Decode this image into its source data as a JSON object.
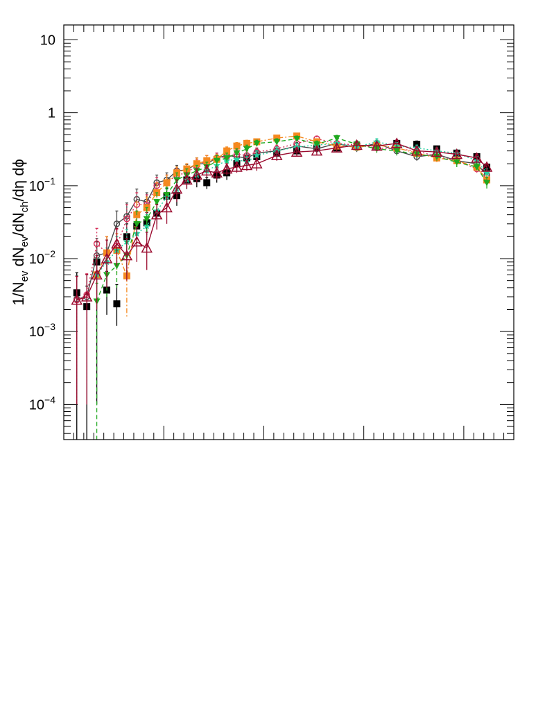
{
  "chart_data": {
    "type": "scatter",
    "title": "",
    "xlabel": "",
    "ylabel": "1/N_ev dN_ev/dN_ch/dη dϕ",
    "ylabel_parts": {
      "a": "1/N",
      "a_sub": "ev",
      "b": " dN",
      "b_sub": "ev",
      "c": "/dN",
      "c_sub": "ch",
      "d": "/dη dϕ"
    },
    "yscale": "log",
    "ylim": [
      3.3e-05,
      16
    ],
    "xlim": [
      0,
      45
    ],
    "grid": false,
    "legend": "none",
    "y_tick_labels": [
      {
        "value": 10,
        "base": "10",
        "exp": ""
      },
      {
        "value": 1,
        "base": "1",
        "exp": ""
      },
      {
        "value": 0.1,
        "base": "10",
        "exp": "−1"
      },
      {
        "value": 0.01,
        "base": "10",
        "exp": "−2"
      },
      {
        "value": 0.001,
        "base": "10",
        "exp": "−3"
      },
      {
        "value": 0.0001,
        "base": "10",
        "exp": "−4"
      }
    ],
    "series": [
      {
        "color": "#000000",
        "marker": "square-filled",
        "dash": "none",
        "connect": false,
        "x": [
          1.3,
          2.3,
          3.3,
          4.3,
          5.3,
          6.3,
          7.3,
          8.3,
          9.3,
          10.3,
          11.3,
          12.3,
          13.3,
          14.3,
          15.3,
          16.3,
          17.3,
          18.3,
          19.3,
          21.3,
          23.3,
          25.3,
          27.3,
          29.3,
          31.3,
          33.3,
          35.3,
          37.3,
          39.3,
          41.3,
          42.3
        ],
        "y": [
          0.0034,
          0.0022,
          0.009,
          0.0037,
          0.0024,
          0.02,
          0.028,
          0.031,
          0.042,
          0.072,
          0.073,
          0.12,
          0.125,
          0.11,
          0.14,
          0.15,
          0.2,
          0.24,
          0.25,
          0.28,
          0.3,
          0.34,
          0.33,
          0.35,
          0.34,
          0.38,
          0.37,
          0.32,
          0.28,
          0.25,
          0.18
        ],
        "err_low": [
          0.0034,
          0.0022,
          0.0089,
          0.002,
          0.0012,
          0.008,
          0.01,
          0.01,
          0.012,
          0.02,
          0.02,
          0.03,
          0.03,
          0.02,
          0.03,
          0.03,
          0.04,
          0.04,
          0.04,
          0.04,
          0.04,
          0.04,
          0.04,
          0.04,
          0.04,
          0.04,
          0.04,
          0.03,
          0.03,
          0.02,
          0.02
        ],
        "err_high": [
          0.003,
          0.002,
          0.008,
          0.003,
          0.002,
          0.01,
          0.012,
          0.012,
          0.014,
          0.02,
          0.02,
          0.03,
          0.03,
          0.02,
          0.03,
          0.03,
          0.04,
          0.04,
          0.04,
          0.04,
          0.04,
          0.04,
          0.04,
          0.04,
          0.04,
          0.04,
          0.04,
          0.03,
          0.03,
          0.02,
          0.02
        ]
      },
      {
        "color": "#4a4a4a",
        "marker": "circle-open",
        "dash": "solid",
        "connect": true,
        "x": [
          1.3,
          2.3,
          3.3,
          4.3,
          5.3,
          6.3,
          7.3,
          8.3,
          9.3,
          10.3,
          11.3,
          12.3,
          13.3,
          14.3,
          15.3,
          16.3,
          17.3,
          18.3,
          19.3,
          21.3,
          23.3,
          25.3,
          27.3,
          29.3,
          31.3,
          33.3,
          35.3,
          37.3,
          39.3,
          41.3,
          42.3
        ],
        "y": [
          0.0028,
          0.003,
          0.011,
          0.012,
          0.03,
          0.038,
          0.065,
          0.06,
          0.11,
          0.12,
          0.16,
          0.165,
          0.2,
          0.2,
          0.24,
          0.26,
          0.25,
          0.24,
          0.28,
          0.3,
          0.35,
          0.32,
          0.38,
          0.33,
          0.38,
          0.3,
          0.25,
          0.27,
          0.22,
          0.2,
          0.14
        ],
        "err_low": [
          0.0027,
          0.0029,
          0.006,
          0.007,
          0.015,
          0.018,
          0.025,
          0.02,
          0.03,
          0.03,
          0.03,
          0.03,
          0.04,
          0.04,
          0.04,
          0.04,
          0.04,
          0.04,
          0.04,
          0.04,
          0.04,
          0.04,
          0.04,
          0.04,
          0.04,
          0.04,
          0.03,
          0.03,
          0.03,
          0.03,
          0.02
        ],
        "err_high": [
          0.003,
          0.003,
          0.008,
          0.008,
          0.015,
          0.02,
          0.025,
          0.02,
          0.03,
          0.03,
          0.03,
          0.03,
          0.04,
          0.04,
          0.04,
          0.04,
          0.04,
          0.04,
          0.04,
          0.04,
          0.04,
          0.04,
          0.04,
          0.04,
          0.04,
          0.04,
          0.03,
          0.03,
          0.03,
          0.03,
          0.02
        ]
      },
      {
        "color": "#d6305a",
        "marker": "circle-open",
        "dash": "dotted",
        "connect": true,
        "x": [
          1.3,
          2.3,
          3.3,
          4.3,
          5.3,
          6.3,
          7.3,
          8.3,
          9.3,
          10.3,
          11.3,
          12.3,
          13.3,
          14.3,
          15.3,
          16.3,
          17.3,
          18.3,
          19.3,
          21.3,
          23.3,
          25.3,
          27.3,
          29.3,
          31.3,
          33.3,
          35.3,
          37.3,
          39.3,
          41.3,
          42.3
        ],
        "y": [
          0.0027,
          0.0032,
          0.016,
          0.012,
          0.015,
          0.035,
          0.055,
          0.055,
          0.1,
          0.11,
          0.14,
          0.15,
          0.19,
          0.22,
          0.24,
          0.25,
          0.27,
          0.26,
          0.29,
          0.32,
          0.38,
          0.44,
          0.38,
          0.36,
          0.33,
          0.32,
          0.3,
          0.25,
          0.22,
          0.17,
          0.13
        ],
        "err_low": [
          0.0026,
          0.003,
          0.008,
          0.006,
          0.008,
          0.015,
          0.02,
          0.02,
          0.03,
          0.03,
          0.03,
          0.03,
          0.04,
          0.04,
          0.04,
          0.04,
          0.04,
          0.04,
          0.04,
          0.04,
          0.04,
          0.04,
          0.04,
          0.04,
          0.04,
          0.04,
          0.03,
          0.03,
          0.03,
          0.02,
          0.02
        ],
        "err_high": [
          0.003,
          0.003,
          0.01,
          0.008,
          0.01,
          0.02,
          0.025,
          0.02,
          0.03,
          0.03,
          0.03,
          0.03,
          0.04,
          0.04,
          0.04,
          0.04,
          0.04,
          0.04,
          0.04,
          0.04,
          0.04,
          0.04,
          0.04,
          0.04,
          0.04,
          0.04,
          0.03,
          0.03,
          0.03,
          0.02,
          0.02
        ]
      },
      {
        "color": "#f5891f",
        "marker": "square-filled",
        "dash": "dashdot",
        "connect": true,
        "x": [
          3.3,
          4.3,
          5.3,
          6.3,
          7.3,
          8.3,
          9.3,
          10.3,
          11.3,
          12.3,
          13.3,
          14.3,
          15.3,
          16.3,
          17.3,
          18.3,
          19.3,
          21.3,
          23.3,
          25.3,
          27.3,
          29.3,
          31.3,
          33.3,
          35.3,
          37.3,
          39.3,
          41.3,
          42.3
        ],
        "y": [
          0.006,
          0.012,
          0.013,
          0.0058,
          0.04,
          0.05,
          0.08,
          0.11,
          0.15,
          0.17,
          0.2,
          0.22,
          0.23,
          0.3,
          0.35,
          0.38,
          0.4,
          0.45,
          0.48,
          0.4,
          0.35,
          0.34,
          0.36,
          0.33,
          0.28,
          0.24,
          0.22,
          0.18,
          0.12
        ],
        "err_low": [
          0.003,
          0.006,
          0.007,
          0.0042,
          0.015,
          0.02,
          0.03,
          0.03,
          0.03,
          0.03,
          0.04,
          0.04,
          0.04,
          0.04,
          0.04,
          0.04,
          0.04,
          0.04,
          0.04,
          0.04,
          0.04,
          0.04,
          0.04,
          0.04,
          0.03,
          0.03,
          0.03,
          0.02,
          0.02
        ],
        "err_high": [
          0.004,
          0.008,
          0.009,
          0.005,
          0.02,
          0.02,
          0.03,
          0.03,
          0.03,
          0.03,
          0.04,
          0.04,
          0.04,
          0.04,
          0.04,
          0.04,
          0.04,
          0.04,
          0.04,
          0.04,
          0.04,
          0.04,
          0.04,
          0.04,
          0.03,
          0.03,
          0.03,
          0.02,
          0.02
        ]
      },
      {
        "color": "#24d0a0",
        "marker": "star",
        "dash": "dotted",
        "connect": true,
        "x": [
          3.3,
          4.3,
          5.3,
          6.3,
          7.3,
          8.3,
          9.3,
          10.3,
          11.3,
          12.3,
          13.3,
          14.3,
          15.3,
          16.3,
          17.3,
          18.3,
          19.3,
          21.3,
          23.3,
          25.3,
          27.3,
          29.3,
          31.3,
          33.3,
          35.3,
          37.3,
          39.3,
          41.3,
          42.3
        ],
        "y": [
          0.006,
          0.009,
          0.013,
          0.017,
          0.022,
          0.028,
          0.045,
          0.07,
          0.09,
          0.12,
          0.14,
          0.16,
          0.19,
          0.22,
          0.23,
          0.21,
          0.26,
          0.3,
          0.34,
          0.36,
          0.38,
          0.34,
          0.4,
          0.35,
          0.33,
          0.3,
          0.28,
          0.22,
          0.15
        ],
        "err_low": [
          0.003,
          0.004,
          0.006,
          0.007,
          0.008,
          0.01,
          0.015,
          0.02,
          0.02,
          0.03,
          0.03,
          0.03,
          0.04,
          0.04,
          0.04,
          0.04,
          0.04,
          0.04,
          0.04,
          0.04,
          0.04,
          0.04,
          0.04,
          0.04,
          0.03,
          0.03,
          0.03,
          0.03,
          0.02
        ],
        "err_high": [
          0.004,
          0.005,
          0.007,
          0.008,
          0.01,
          0.012,
          0.02,
          0.02,
          0.02,
          0.03,
          0.03,
          0.03,
          0.04,
          0.04,
          0.04,
          0.04,
          0.04,
          0.04,
          0.04,
          0.04,
          0.04,
          0.04,
          0.04,
          0.04,
          0.03,
          0.03,
          0.03,
          0.03,
          0.02
        ]
      },
      {
        "color": "#1fa81f",
        "marker": "triangle-down-filled",
        "dash": "dashed",
        "connect": true,
        "x": [
          3.3,
          4.3,
          5.3,
          6.3,
          7.3,
          8.3,
          9.3,
          10.3,
          11.3,
          12.3,
          13.3,
          14.3,
          15.3,
          16.3,
          17.3,
          18.3,
          19.3,
          21.3,
          23.3,
          25.3,
          27.3,
          29.3,
          31.3,
          33.3,
          35.3,
          37.3,
          39.3,
          41.3,
          42.3
        ],
        "y": [
          0.0026,
          0.006,
          0.008,
          0.011,
          0.03,
          0.035,
          0.06,
          0.075,
          0.12,
          0.14,
          0.16,
          0.18,
          0.22,
          0.24,
          0.28,
          0.32,
          0.38,
          0.4,
          0.44,
          0.37,
          0.45,
          0.37,
          0.32,
          0.3,
          0.27,
          0.25,
          0.21,
          0.18,
          0.11
        ],
        "err_low": [
          0.0026,
          0.003,
          0.004,
          0.005,
          0.012,
          0.013,
          0.02,
          0.02,
          0.03,
          0.03,
          0.03,
          0.03,
          0.04,
          0.04,
          0.04,
          0.04,
          0.04,
          0.04,
          0.04,
          0.04,
          0.04,
          0.04,
          0.04,
          0.04,
          0.03,
          0.03,
          0.03,
          0.02,
          0.02
        ],
        "err_high": [
          0.002,
          0.004,
          0.005,
          0.006,
          0.015,
          0.015,
          0.02,
          0.02,
          0.03,
          0.03,
          0.03,
          0.03,
          0.04,
          0.04,
          0.04,
          0.04,
          0.04,
          0.04,
          0.04,
          0.04,
          0.04,
          0.04,
          0.04,
          0.04,
          0.03,
          0.03,
          0.03,
          0.02,
          0.02
        ]
      },
      {
        "color": "#9a0a2e",
        "marker": "triangle-up-open",
        "dash": "solid",
        "connect": true,
        "x": [
          1.3,
          2.3,
          3.3,
          4.3,
          5.3,
          6.3,
          7.3,
          8.3,
          9.3,
          10.3,
          11.3,
          12.3,
          13.3,
          14.3,
          15.3,
          16.3,
          17.3,
          18.3,
          19.3,
          21.3,
          23.3,
          25.3,
          27.3,
          29.3,
          31.3,
          33.3,
          35.3,
          37.3,
          39.3,
          41.3,
          42.3
        ],
        "y": [
          0.0027,
          0.003,
          0.006,
          0.01,
          0.016,
          0.011,
          0.017,
          0.014,
          0.04,
          0.05,
          0.09,
          0.12,
          0.14,
          0.16,
          0.15,
          0.17,
          0.18,
          0.19,
          0.2,
          0.26,
          0.29,
          0.3,
          0.33,
          0.36,
          0.35,
          0.38,
          0.3,
          0.29,
          0.27,
          0.24,
          0.18
        ],
        "err_low": [
          0.0026,
          0.0029,
          0.004,
          0.006,
          0.008,
          0.006,
          0.008,
          0.007,
          0.015,
          0.02,
          0.03,
          0.03,
          0.03,
          0.03,
          0.03,
          0.03,
          0.03,
          0.03,
          0.04,
          0.04,
          0.04,
          0.04,
          0.04,
          0.04,
          0.04,
          0.04,
          0.04,
          0.03,
          0.03,
          0.03,
          0.02
        ],
        "err_high": [
          0.003,
          0.003,
          0.005,
          0.008,
          0.01,
          0.008,
          0.01,
          0.009,
          0.015,
          0.02,
          0.03,
          0.03,
          0.03,
          0.03,
          0.03,
          0.03,
          0.03,
          0.03,
          0.04,
          0.04,
          0.04,
          0.04,
          0.04,
          0.04,
          0.04,
          0.04,
          0.04,
          0.03,
          0.03,
          0.03,
          0.02
        ]
      }
    ]
  }
}
